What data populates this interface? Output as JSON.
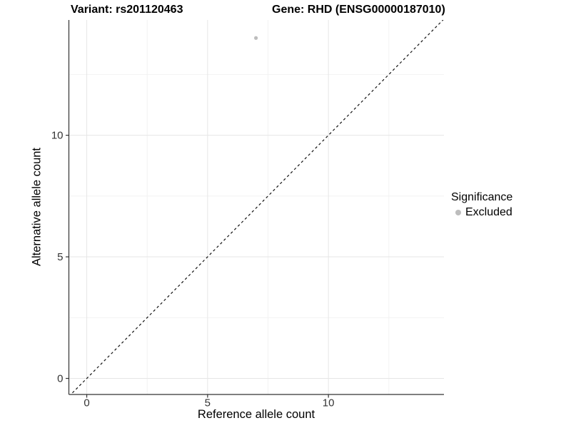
{
  "titles": {
    "variant": "Variant: rs201120463",
    "gene": "Gene: RHD (ENSG00000187010)"
  },
  "legend": {
    "title": "Significance",
    "items": [
      {
        "label": "Excluded",
        "marker": "circle-icon",
        "color": "#bdbdbd"
      }
    ]
  },
  "colors": {
    "background": "#ffffff",
    "axis_line": "#333333",
    "tick_label": "#333333",
    "grid_major": "#e6e6e6",
    "grid_minor": "#f2f2f2",
    "point": "#bdbdbd",
    "reference_line": "#111111"
  },
  "chart_data": {
    "type": "scatter",
    "title": "",
    "xlabel": "Reference allele count",
    "ylabel": "Alternative allele count",
    "xlim": [
      -0.74,
      14.78
    ],
    "ylim": [
      -0.66,
      14.74
    ],
    "x_major_ticks": [
      0,
      5,
      10
    ],
    "y_major_ticks": [
      0,
      5,
      10
    ],
    "x_minor_gridlines": [
      2.5,
      7.5,
      12.5
    ],
    "y_minor_gridlines": [
      2.5,
      7.5,
      12.5
    ],
    "grid": "major and minor gridlines, light gray on white panel",
    "legend_position": "right-center",
    "series": [
      {
        "name": "Excluded",
        "color": "#bdbdbd",
        "points": [
          {
            "x": 7,
            "y": 14
          }
        ]
      }
    ],
    "reference_line": {
      "slope": 1,
      "intercept": 0,
      "style": "dashed",
      "color": "#111111"
    }
  }
}
